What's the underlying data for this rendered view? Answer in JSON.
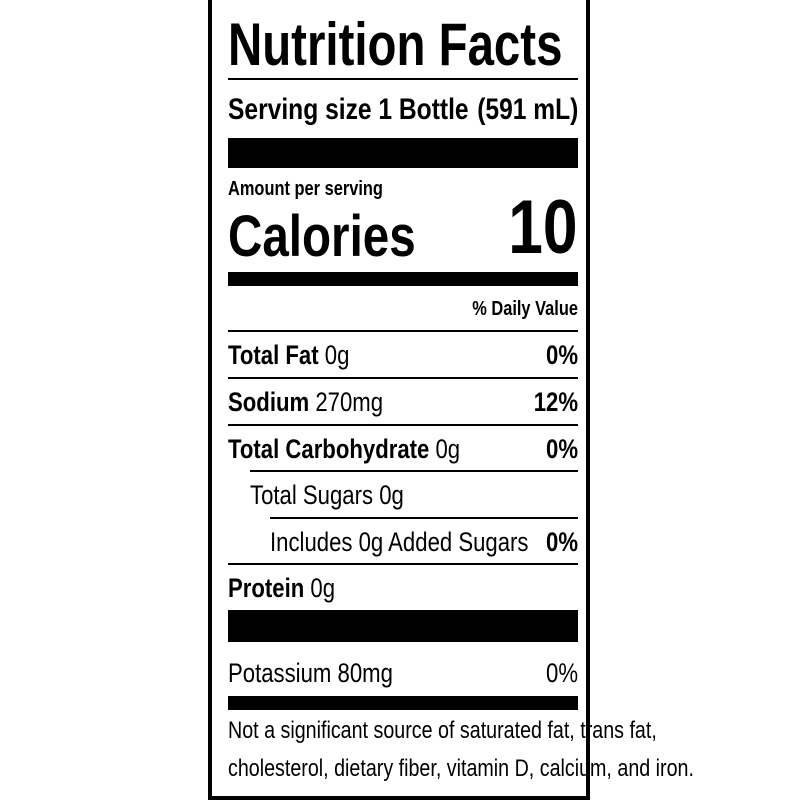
{
  "title": "Nutrition Facts",
  "serving": {
    "label": "Serving size",
    "value": "1 Bottle",
    "amount": "(591 mL)"
  },
  "amount_per_serving": "Amount per serving",
  "calories": {
    "label": "Calories",
    "value": "10"
  },
  "daily_value_header": "% Daily Value",
  "nutrients": [
    {
      "name": "Total Fat",
      "amount": "0g",
      "dv": "0%"
    },
    {
      "name": "Sodium",
      "amount": "270mg",
      "dv": "12%"
    },
    {
      "name": "Total Carbohydrate",
      "amount": "0g",
      "dv": "0%"
    },
    {
      "name": "Total Sugars 0g"
    },
    {
      "name": "Includes 0g Added Sugars",
      "dv": "0%"
    },
    {
      "name": "Protein",
      "amount": "0g"
    }
  ],
  "potassium": {
    "name": "Potassium 80mg",
    "dv": "0%"
  },
  "footnote": [
    "Not a significant source of saturated fat, trans fat,",
    "cholesterol, dietary fiber, vitamin D, calcium, and iron."
  ]
}
